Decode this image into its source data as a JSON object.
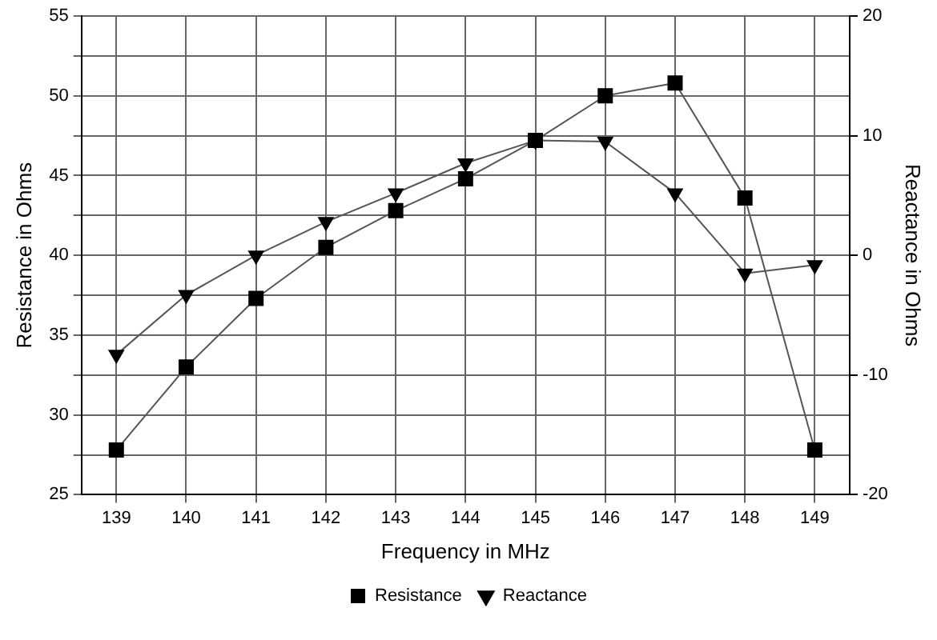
{
  "chart_data": {
    "type": "line",
    "xlabel": "Frequency in MHz",
    "ylabel": "Resistance in Ohms",
    "y2label": "Reactance in Ohms",
    "categories": [
      "139",
      "140",
      "141",
      "142",
      "143",
      "144",
      "145",
      "146",
      "147",
      "148",
      "149"
    ],
    "series": [
      {
        "name": "Resistance",
        "color": "#000000",
        "marker": "square",
        "values": [
          27.8,
          33,
          37.3,
          40.5,
          42.8,
          44.8,
          47.2,
          50,
          50.8,
          43.6,
          27.8
        ]
      },
      {
        "name": "Reactance",
        "color": "#000000",
        "marker": "triangle",
        "axis": "y2",
        "values": [
          -8.3,
          -3.3,
          0,
          2.8,
          5.2,
          7.7,
          9.6,
          9.5,
          5.2,
          -1.5,
          -0.8
        ]
      }
    ],
    "ylim": [
      25,
      55
    ],
    "yticks": [
      25,
      {
        "value": 27.5,
        "label": null
      },
      30,
      {
        "value": 32.5,
        "label": null
      },
      35,
      {
        "value": 37.5,
        "label": null
      },
      40,
      {
        "value": 42.5,
        "label": null
      },
      45,
      {
        "value": 47.5,
        "label": null
      },
      50,
      {
        "value": 52.5,
        "label": null
      },
      55
    ],
    "y2lim": [
      -20,
      20
    ],
    "y2ticks": [
      -20,
      -10,
      0,
      10,
      20
    ],
    "grid": true,
    "legend": "bottom",
    "line_style": "solid"
  }
}
